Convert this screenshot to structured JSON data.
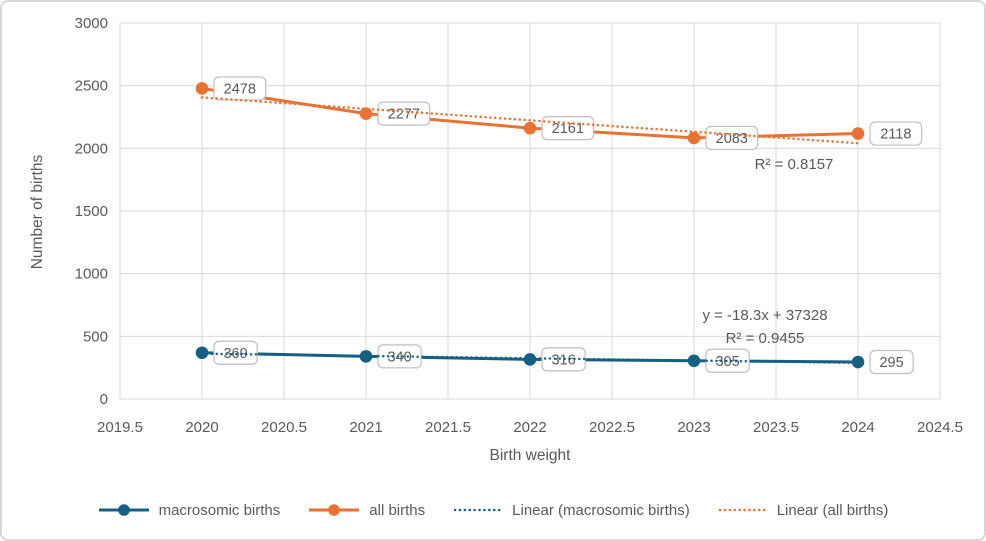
{
  "chart": {
    "colors": {
      "macrosomic": "#156082",
      "all_births": "#E97132",
      "gridline": "#D9D9D9",
      "axis_text": "#595959",
      "data_label_border": "#BFBFBF"
    }
  },
  "chart_data": {
    "type": "line",
    "x": [
      2020,
      2021,
      2022,
      2023,
      2024
    ],
    "series": [
      {
        "name": "macrosomic births",
        "values": [
          369,
          340,
          316,
          305,
          295
        ],
        "color": "#156082"
      },
      {
        "name": "all births",
        "values": [
          2478,
          2277,
          2161,
          2083,
          2118
        ],
        "color": "#E97132"
      }
    ],
    "trendlines": [
      {
        "name": "Linear (macrosomic births)",
        "color": "#156082",
        "equation": "y = -18.3x + 37328",
        "r_squared": "R² = 0.9455"
      },
      {
        "name": "Linear (all births)",
        "color": "#E97132",
        "r_squared": "R² = 0.8157"
      }
    ],
    "xlabel": "Birth weight",
    "ylabel": "Number of births",
    "xlim": [
      2019.5,
      2024.5
    ],
    "ylim": [
      0,
      3000
    ],
    "x_ticks": [
      "2019.5",
      "2020",
      "2020.5",
      "2021",
      "2021.5",
      "2022",
      "2022.5",
      "2023",
      "2023.5",
      "2024",
      "2024.5"
    ],
    "y_ticks": [
      "0",
      "500",
      "1000",
      "1500",
      "2000",
      "2500",
      "3000"
    ],
    "grid": true,
    "legend_position": "bottom"
  },
  "annotations": {
    "all_births_r2": "R² = 0.8157",
    "macrosomic_equation": "y = -18.3x + 37328",
    "macrosomic_r2": "R² = 0.9455"
  },
  "legend": {
    "items": [
      {
        "label": "macrosomic births",
        "style": "line-marker",
        "color": "#156082"
      },
      {
        "label": "all births",
        "style": "line-marker",
        "color": "#E97132"
      },
      {
        "label": "Linear (macrosomic births)",
        "style": "dotted",
        "color": "#156082"
      },
      {
        "label": "Linear (all births)",
        "style": "dotted",
        "color": "#E97132"
      }
    ]
  }
}
